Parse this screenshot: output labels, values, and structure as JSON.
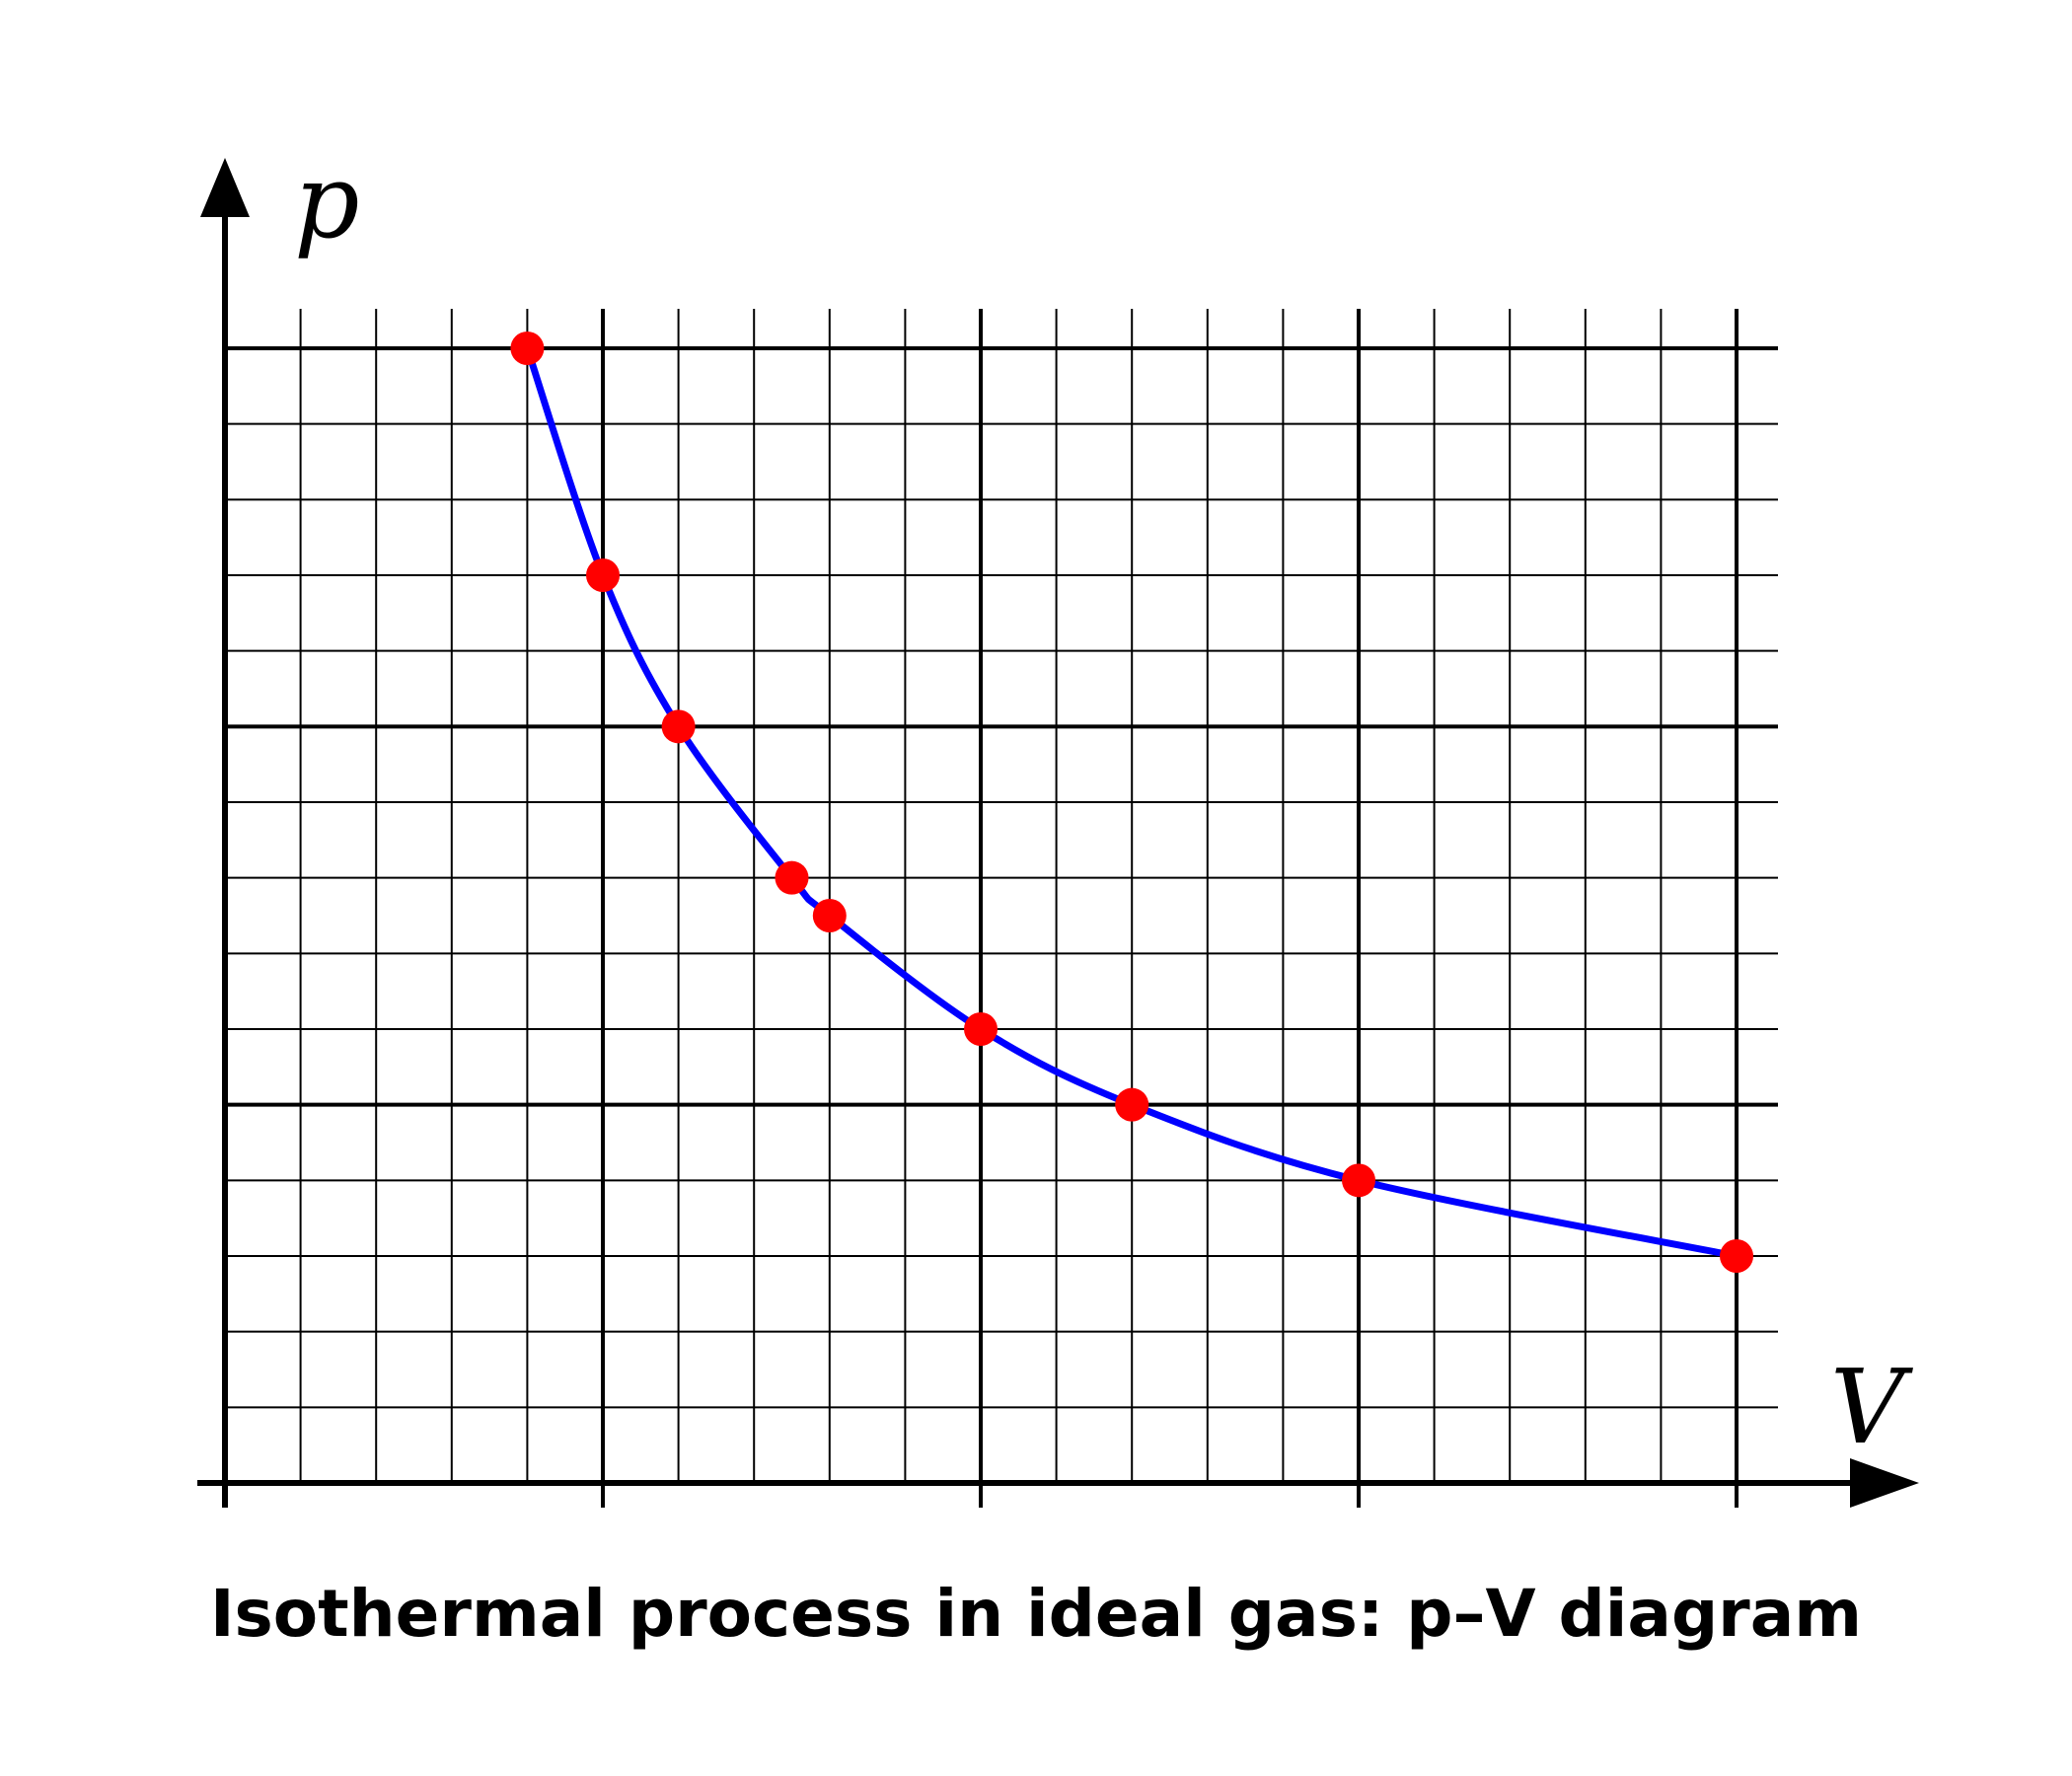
{
  "chart_data": {
    "type": "line",
    "title": "Isothermal process in ideal gas: p–V diagram",
    "xlabel": "V",
    "ylabel": "p",
    "xlim": [
      0,
      20
    ],
    "ylim": [
      0,
      15
    ],
    "x_major_step": 5,
    "y_major_step": 5,
    "grid": true,
    "minor_grid": true,
    "series": [
      {
        "color": "#0000ff",
        "marker_color": "#ff0000",
        "points": [
          {
            "x": 4,
            "y": 15
          },
          {
            "x": 5,
            "y": 12
          },
          {
            "x": 6,
            "y": 10
          },
          {
            "x": 7.5,
            "y": 8
          },
          {
            "x": 8,
            "y": 7.5
          },
          {
            "x": 10,
            "y": 6
          },
          {
            "x": 12,
            "y": 5
          },
          {
            "x": 15,
            "y": 4
          },
          {
            "x": 20,
            "y": 3
          }
        ]
      }
    ]
  }
}
